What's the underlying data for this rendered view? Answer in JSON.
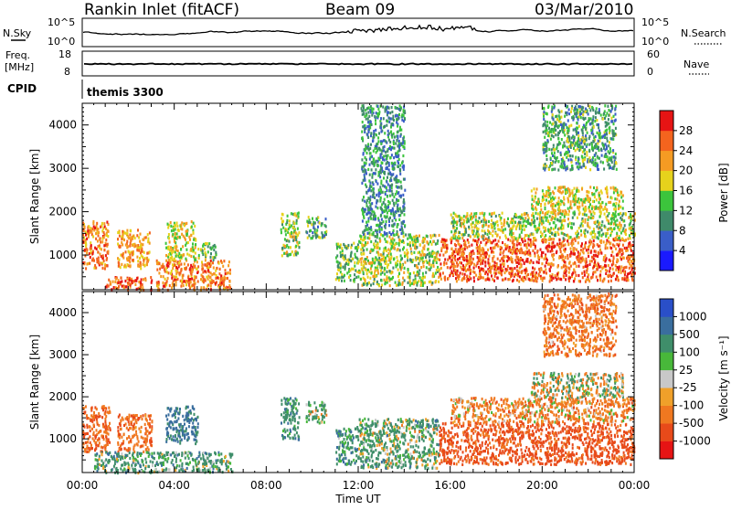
{
  "header": {
    "station": "Rankin Inlet (fitACF)",
    "beam": "Beam 09",
    "date": "03/Mar/2010"
  },
  "noise_panel": {
    "left_label": "N.Sky",
    "left_ticks": [
      "10^5",
      "10^0"
    ],
    "right_ticks": [
      "10^5",
      "10^0"
    ],
    "right_label": "N.Search"
  },
  "freq_panel": {
    "label_line1": "Freq.",
    "label_line2": "[MHz]",
    "left_ticks": [
      "18",
      "8"
    ],
    "right_ticks": [
      "60",
      "0"
    ],
    "right_label": "Nave"
  },
  "cpid_panel": {
    "label": "CPID",
    "value": "themis 3300"
  },
  "time_axis": {
    "label": "Time UT",
    "ticks": [
      "00:00",
      "04:00",
      "08:00",
      "12:00",
      "16:00",
      "20:00",
      "00:00"
    ]
  },
  "range_axis": {
    "label": "Slant Range [km]",
    "ticks": [
      "1000",
      "2000",
      "3000",
      "4000"
    ]
  },
  "power_scale": {
    "label": "Power [dB]",
    "ticks": [
      "4",
      "8",
      "12",
      "16",
      "20",
      "24",
      "28"
    ],
    "colors": [
      "#1a1aff",
      "#3a5ec8",
      "#3f8a6a",
      "#3cc43c",
      "#e6d21c",
      "#f59b23",
      "#f4641e",
      "#e61414"
    ]
  },
  "velocity_scale": {
    "label": "Velocity [m s⁻¹]",
    "ticks": [
      "1000",
      "500",
      "100",
      "25",
      "-25",
      "-100",
      "-500",
      "-1000"
    ],
    "colors": [
      "#2a4fc8",
      "#3a6e9e",
      "#3f8e6a",
      "#48b83a",
      "#c8c8c8",
      "#f0a02a",
      "#f07820",
      "#e84a1a",
      "#e61414"
    ]
  },
  "chart_data": [
    {
      "type": "heatmap",
      "title": "Power",
      "xlabel": "Time UT",
      "ylabel": "Slant Range [km]",
      "colorbar_label": "Power [dB]",
      "xlim_hours": [
        0,
        24
      ],
      "ylim_km": [
        200,
        4500
      ],
      "clim_db": [
        0,
        32
      ],
      "scatter_regions": [
        {
          "t0": 0.0,
          "t1": 1.1,
          "r0": 700,
          "r1": 1800,
          "v": 24
        },
        {
          "t0": 1.5,
          "t1": 2.9,
          "r0": 700,
          "r1": 1600,
          "v": 22
        },
        {
          "t0": 1.0,
          "t1": 3.0,
          "r0": 200,
          "r1": 500,
          "v": 26
        },
        {
          "t0": 3.2,
          "t1": 6.4,
          "r0": 200,
          "r1": 900,
          "v": 24
        },
        {
          "t0": 3.6,
          "t1": 4.9,
          "r0": 900,
          "r1": 1800,
          "v": 18
        },
        {
          "t0": 5.0,
          "t1": 5.8,
          "r0": 900,
          "r1": 1300,
          "v": 14
        },
        {
          "t0": 8.6,
          "t1": 9.4,
          "r0": 1000,
          "r1": 2000,
          "v": 16
        },
        {
          "t0": 9.7,
          "t1": 10.6,
          "r0": 1400,
          "r1": 1900,
          "v": 12
        },
        {
          "t0": 11.0,
          "t1": 12.0,
          "r0": 400,
          "r1": 1300,
          "v": 14
        },
        {
          "t0": 12.0,
          "t1": 15.5,
          "r0": 300,
          "r1": 1500,
          "v": 16
        },
        {
          "t0": 12.1,
          "t1": 14.0,
          "r0": 1500,
          "r1": 4500,
          "v": 10
        },
        {
          "t0": 15.5,
          "t1": 24.0,
          "r0": 400,
          "r1": 1400,
          "v": 26
        },
        {
          "t0": 16.0,
          "t1": 24.0,
          "r0": 1400,
          "r1": 2000,
          "v": 16
        },
        {
          "t0": 19.5,
          "t1": 23.5,
          "r0": 2000,
          "r1": 2600,
          "v": 18
        },
        {
          "t0": 20.0,
          "t1": 23.2,
          "r0": 3000,
          "r1": 4500,
          "v": 12
        }
      ]
    },
    {
      "type": "heatmap",
      "title": "Velocity",
      "xlabel": "Time UT",
      "ylabel": "Slant Range [km]",
      "colorbar_label": "Velocity [m s⁻¹]",
      "xlim_hours": [
        0,
        24
      ],
      "ylim_km": [
        200,
        4500
      ],
      "clim_ms": [
        -1000,
        1000
      ],
      "scatter_regions": [
        {
          "t0": 0.0,
          "t1": 1.2,
          "r0": 700,
          "r1": 1800,
          "v": -300
        },
        {
          "t0": 1.5,
          "t1": 3.0,
          "r0": 700,
          "r1": 1600,
          "v": -250
        },
        {
          "t0": 0.5,
          "t1": 6.5,
          "r0": 200,
          "r1": 700,
          "v": 150
        },
        {
          "t0": 3.6,
          "t1": 5.0,
          "r0": 900,
          "r1": 1800,
          "v": 400
        },
        {
          "t0": 8.6,
          "t1": 9.4,
          "r0": 1000,
          "r1": 2000,
          "v": 200
        },
        {
          "t0": 9.7,
          "t1": 10.6,
          "r0": 1400,
          "r1": 1900,
          "v": 80
        },
        {
          "t0": 11.0,
          "t1": 12.0,
          "r0": 400,
          "r1": 1300,
          "v": 200
        },
        {
          "t0": 12.0,
          "t1": 15.5,
          "r0": 300,
          "r1": 1500,
          "v": 120
        },
        {
          "t0": 15.5,
          "t1": 24.0,
          "r0": 400,
          "r1": 1400,
          "v": -400
        },
        {
          "t0": 16.0,
          "t1": 24.0,
          "r0": 1400,
          "r1": 2000,
          "v": -150
        },
        {
          "t0": 19.5,
          "t1": 23.5,
          "r0": 2000,
          "r1": 2600,
          "v": 0
        },
        {
          "t0": 20.0,
          "t1": 23.2,
          "r0": 3000,
          "r1": 4500,
          "v": -200
        }
      ]
    }
  ]
}
